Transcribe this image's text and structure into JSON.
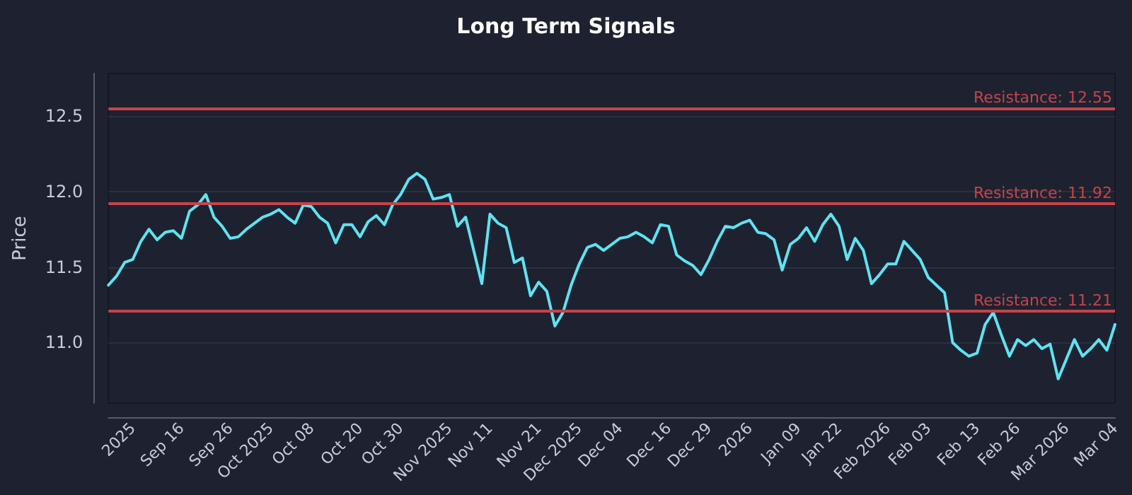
{
  "chart_data": {
    "type": "line",
    "title": "Long Term Signals",
    "ylabel": "Price",
    "categories": [
      null,
      null,
      null,
      "2025",
      null,
      null,
      null,
      null,
      null,
      "Sep 16",
      null,
      null,
      null,
      null,
      null,
      "Sep 26",
      null,
      null,
      null,
      null,
      "Oct 2025",
      null,
      null,
      null,
      null,
      "Oct 08",
      null,
      null,
      null,
      null,
      null,
      "Oct 20",
      null,
      null,
      null,
      null,
      "Oct 30",
      null,
      null,
      null,
      null,
      null,
      "Nov 2025",
      null,
      null,
      null,
      null,
      "Nov 11",
      null,
      null,
      null,
      null,
      null,
      "Nov 21",
      null,
      null,
      null,
      null,
      "Dec 2025",
      null,
      null,
      null,
      null,
      "Dec 04",
      null,
      null,
      null,
      null,
      null,
      "Dec 16",
      null,
      null,
      null,
      null,
      "Dec 29",
      null,
      null,
      null,
      null,
      "2026",
      null,
      null,
      null,
      null,
      null,
      "Jan 09",
      null,
      null,
      null,
      null,
      "Jan 22",
      null,
      null,
      null,
      null,
      null,
      "Feb 2026",
      null,
      null,
      null,
      null,
      "Feb 03",
      null,
      null,
      null,
      null,
      null,
      "Feb 13",
      null,
      null,
      null,
      null,
      "Feb 26",
      null,
      null,
      null,
      null,
      null,
      "Mar 2026",
      null,
      null,
      null,
      null,
      null,
      "Mar 04"
    ],
    "series": [
      {
        "color": "#5ee3f2",
        "values": [
          11.38,
          11.44,
          11.53,
          11.55,
          11.67,
          11.75,
          11.68,
          11.73,
          11.74,
          11.69,
          11.87,
          11.91,
          11.98,
          11.83,
          11.77,
          11.69,
          11.7,
          11.75,
          11.79,
          11.83,
          11.85,
          11.88,
          11.83,
          11.79,
          11.91,
          11.9,
          11.83,
          11.79,
          11.66,
          11.78,
          11.78,
          11.7,
          11.8,
          11.84,
          11.78,
          11.91,
          11.98,
          12.08,
          12.12,
          12.08,
          11.95,
          11.96,
          11.98,
          11.77,
          11.83,
          11.61,
          11.39,
          11.85,
          11.79,
          11.76,
          11.53,
          11.56,
          11.31,
          11.4,
          11.34,
          11.11,
          11.2,
          11.38,
          11.52,
          11.63,
          11.65,
          11.61,
          11.65,
          11.69,
          11.7,
          11.73,
          11.7,
          11.66,
          11.78,
          11.77,
          11.58,
          11.54,
          11.51,
          11.45,
          11.55,
          11.67,
          11.77,
          11.76,
          11.79,
          11.81,
          11.73,
          11.72,
          11.68,
          11.48,
          11.65,
          11.69,
          11.76,
          11.67,
          11.78,
          11.85,
          11.77,
          11.55,
          11.69,
          11.61,
          11.39,
          11.45,
          11.52,
          11.52,
          11.67,
          11.61,
          11.55,
          11.43,
          11.38,
          11.33,
          11.0,
          10.95,
          10.91,
          10.93,
          11.12,
          11.2,
          11.05,
          10.91,
          11.02,
          10.98,
          11.02,
          10.96,
          10.99,
          10.76,
          10.89,
          11.02,
          10.91,
          10.96,
          11.02,
          10.95,
          11.12
        ]
      }
    ],
    "ylim": [
      10.6,
      12.78
    ],
    "yticks": [
      {
        "value": 11,
        "label": "11.0"
      },
      {
        "value": 11.5,
        "label": "11.5"
      },
      {
        "value": 12,
        "label": "12.0"
      },
      {
        "value": 12.5,
        "label": "12.5"
      }
    ],
    "grid": "y",
    "marker": "none",
    "line_style": "solid",
    "ref_lines": [
      {
        "axis": "y",
        "value": 12.55,
        "label": "Resistance: 12.55",
        "color": "#c7434b"
      },
      {
        "axis": "y",
        "value": 11.92,
        "label": "Resistance: 11.92",
        "color": "#c7434b"
      },
      {
        "axis": "y",
        "value": 11.21,
        "label": "Resistance: 11.21",
        "color": "#c7434b"
      }
    ]
  }
}
